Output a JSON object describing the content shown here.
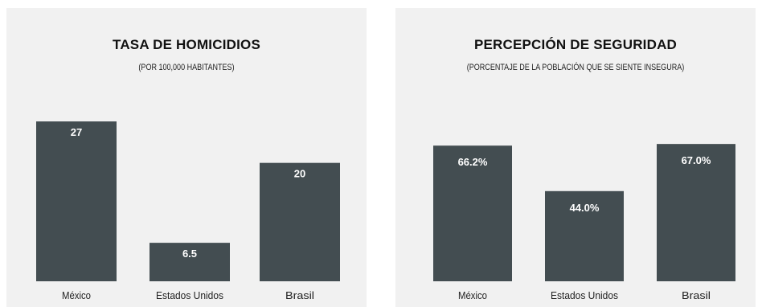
{
  "chart_data": [
    {
      "type": "bar",
      "title": "TASA DE HOMICIDIOS",
      "subtitle": "(POR 100,000 HABITANTES)",
      "categories": [
        "México",
        "Estados Unidos",
        "Brasil"
      ],
      "values": [
        27,
        6.5,
        20
      ],
      "value_labels": [
        "27",
        "6.5",
        "20"
      ],
      "ylim": [
        0,
        30
      ],
      "grid": false,
      "legend": "none",
      "bar_color": "#434d51",
      "label_color": "#ffffff"
    },
    {
      "type": "bar",
      "title": "PERCEPCIÓN DE SEGURIDAD",
      "subtitle": "(PORCENTAJE DE LA POBLACIÓN QUE SE SIENTE INSEGURA)",
      "categories": [
        "México",
        "Estados Unidos",
        "Brasil"
      ],
      "values": [
        66.2,
        44.0,
        67.0
      ],
      "value_labels": [
        "66.2%",
        "44.0%",
        "67.0%"
      ],
      "ylim": [
        0,
        100
      ],
      "grid": false,
      "legend": "none",
      "bar_color": "#434d51",
      "label_color": "#ffffff"
    }
  ]
}
